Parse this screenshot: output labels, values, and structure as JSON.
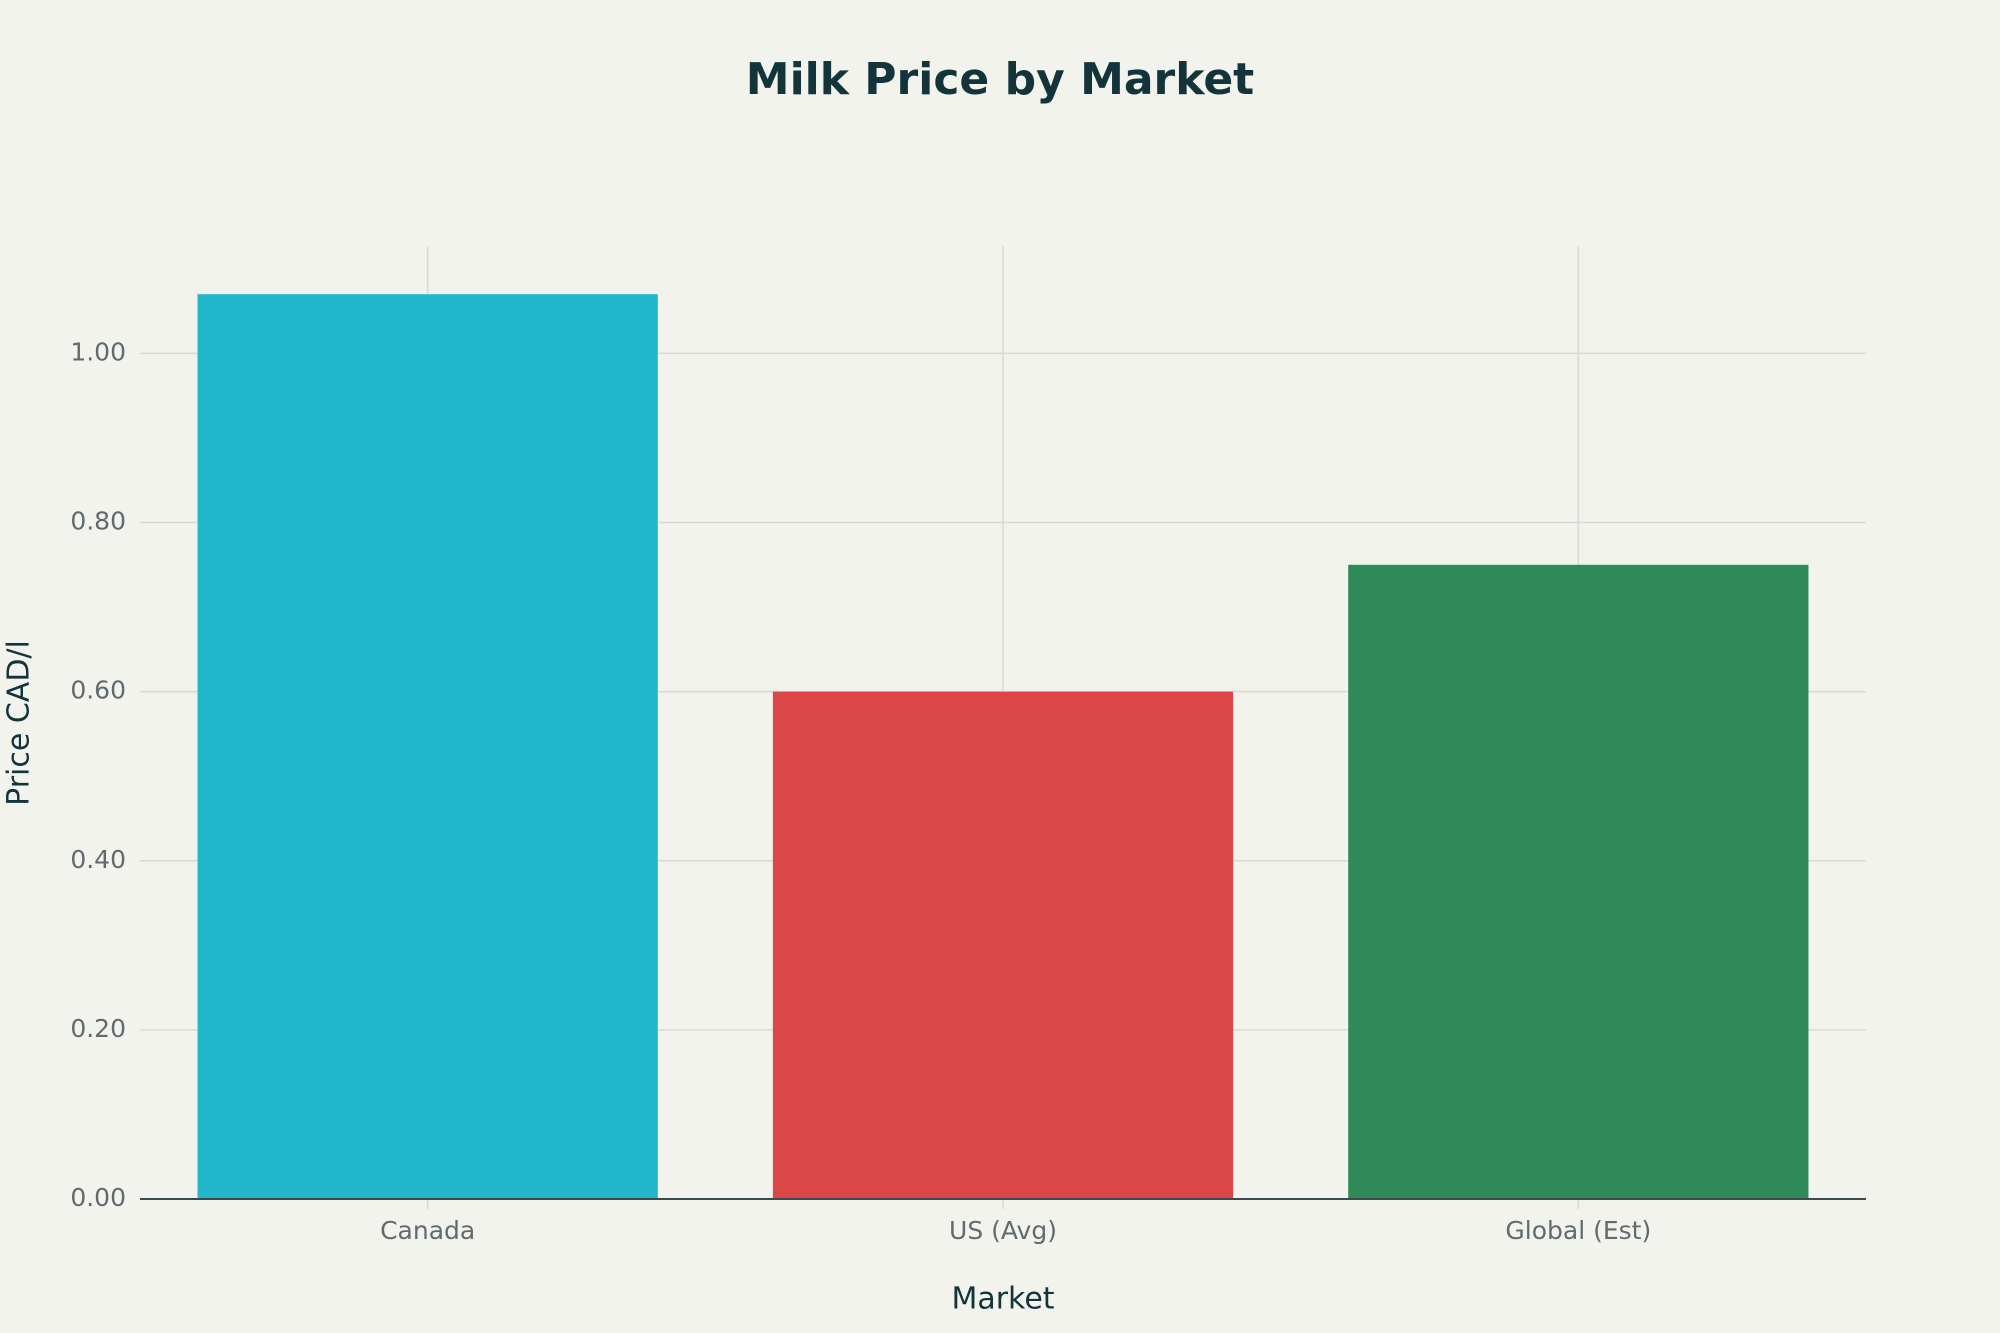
{
  "chart_data": {
    "type": "bar",
    "title": "Milk Price by Market",
    "x_label": "Market",
    "y_label": "Price CAD/l",
    "categories": [
      "Canada",
      "US (Avg)",
      "Global (Est)"
    ],
    "values": [
      1.07,
      0.6,
      0.75
    ],
    "colors": [
      "#21b8cc",
      "#db4646",
      "#2e8b57"
    ],
    "ylim": [
      0,
      1.127
    ],
    "yticks": [
      {
        "value": 0,
        "label": "0.00"
      },
      {
        "value": 0.2,
        "label": "0.20"
      },
      {
        "value": 0.4,
        "label": "0.40"
      },
      {
        "value": 0.6,
        "label": "0.60"
      },
      {
        "value": 0.8,
        "label": "0.80"
      },
      {
        "value": 1.0,
        "label": "1.00"
      }
    ],
    "grid": true
  }
}
